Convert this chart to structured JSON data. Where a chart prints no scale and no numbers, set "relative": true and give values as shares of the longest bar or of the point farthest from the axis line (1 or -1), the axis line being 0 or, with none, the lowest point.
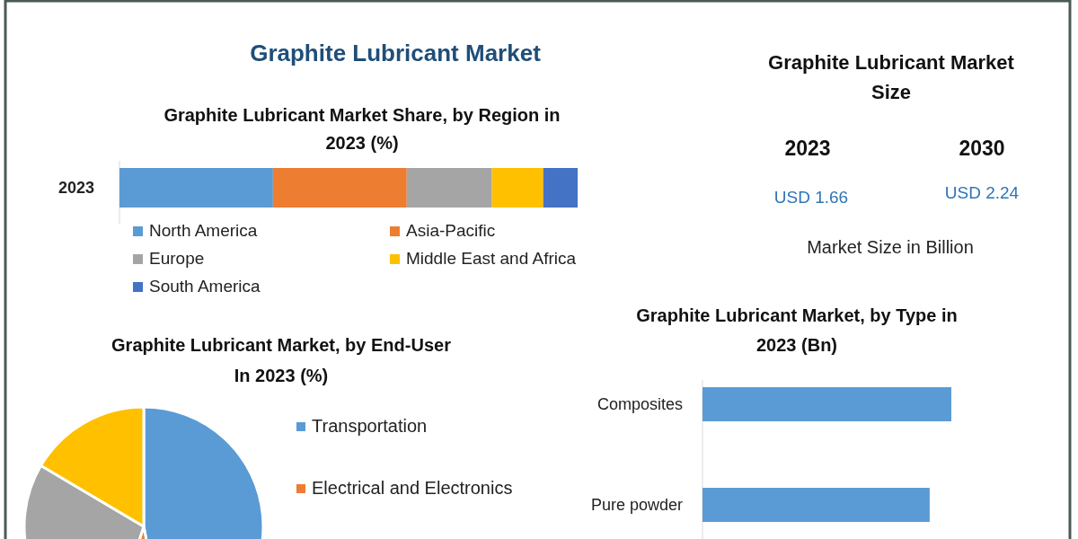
{
  "chart_data": [
    {
      "type": "other",
      "title": "Graphite Lubricant Market"
    },
    {
      "type": "bar",
      "title": "Graphite Lubricant Market Share, by Region in 2023 (%)",
      "orientation": "horizontal",
      "stacked": true,
      "relative": true,
      "categories": [
        "2023"
      ],
      "legend": "bottom",
      "series": [
        {
          "name": "North America",
          "color": "#5b9bd5",
          "values": [
            0.335
          ]
        },
        {
          "name": "Asia-Pacific",
          "color": "#ed7d31",
          "values": [
            0.292
          ]
        },
        {
          "name": "Europe",
          "color": "#a5a5a5",
          "values": [
            0.186
          ]
        },
        {
          "name": "Middle East and Africa",
          "color": "#ffc000",
          "values": [
            0.112
          ]
        },
        {
          "name": "South America",
          "color": "#4472c4",
          "values": [
            0.075
          ]
        }
      ]
    },
    {
      "type": "other",
      "title": "Graphite Lubricant Market Size",
      "annotations": [
        "2023",
        "2030",
        "USD 1.66",
        "USD 2.24",
        "Market Size in Billion"
      ]
    },
    {
      "type": "pie",
      "title": "Graphite Lubricant Market, by End-User In 2023 (%)",
      "legend": "right",
      "categories": [
        "Transportation",
        "Electrical and Electronics",
        null,
        null
      ],
      "values": [
        47,
        8,
        28.5,
        16.5
      ],
      "colors": [
        "#5b9bd5",
        "#ed7d31",
        "#a5a5a5",
        "#ffc000"
      ]
    },
    {
      "type": "bar",
      "title": "Graphite Lubricant Market, by Type in 2023 (Bn)",
      "orientation": "horizontal",
      "relative": true,
      "categories": [
        "Composites",
        "Pure powder"
      ],
      "values": [
        1,
        0.913
      ],
      "color": "#5b9bd5"
    }
  ]
}
